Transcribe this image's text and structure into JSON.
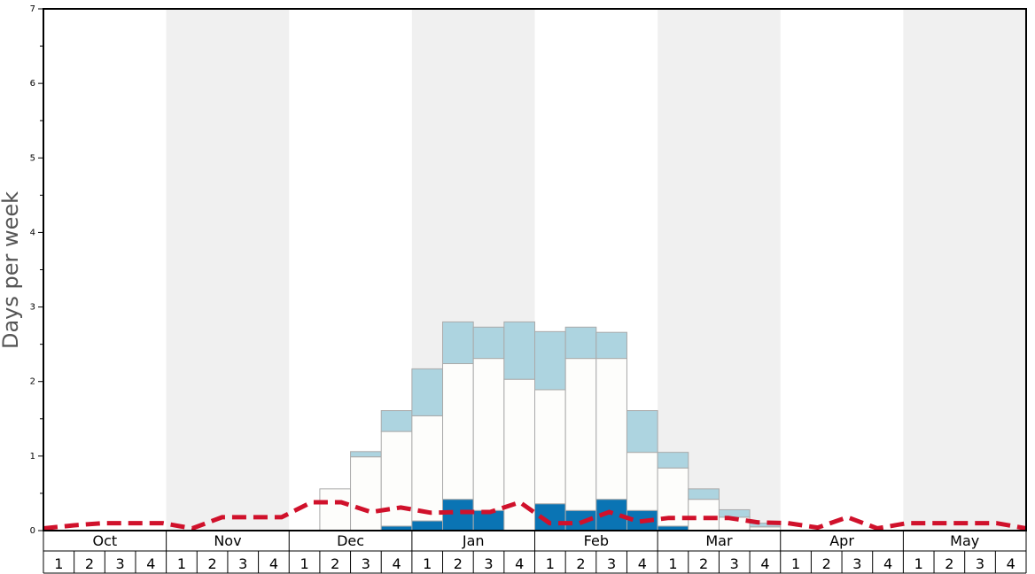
{
  "chart_data": {
    "type": "bar",
    "ylabel": "Days per week",
    "ylim": [
      0,
      7
    ],
    "yticks": [
      0,
      1,
      2,
      3,
      4,
      5,
      6,
      7
    ],
    "months": [
      "Oct",
      "Nov",
      "Dec",
      "Jan",
      "Feb",
      "Mar",
      "Apr",
      "May"
    ],
    "weeks": [
      "1",
      "2",
      "3",
      "4"
    ],
    "alternating_month_shading": true,
    "colors": {
      "white_segment": "#fdfdfb",
      "light_blue_segment": "#add4e0",
      "dark_blue_segment": "#0a74b4",
      "dashed_line": "#d0112b",
      "shade": "#f0f0f0",
      "bar_border": "#aaaaaa"
    },
    "series": [
      {
        "values": [
          0,
          0,
          0,
          0,
          0,
          0,
          0,
          0,
          0,
          0,
          0,
          0.06,
          0.13,
          0.42,
          0.27,
          0,
          0.36,
          0.27,
          0.42,
          0.27,
          0.06,
          0,
          0,
          0,
          0,
          0,
          0,
          0,
          0,
          0,
          0,
          0
        ]
      },
      {
        "values": [
          0,
          0,
          0,
          0,
          0,
          0,
          0,
          0,
          0,
          0.56,
          0.99,
          1.27,
          1.41,
          1.82,
          2.04,
          2.03,
          1.53,
          2.04,
          1.89,
          0.78,
          0.78,
          0.42,
          0.18,
          0.05,
          0,
          0,
          0,
          0,
          0,
          0,
          0,
          0
        ]
      },
      {
        "values": [
          0,
          0,
          0,
          0,
          0,
          0,
          0,
          0,
          0,
          0,
          0.07,
          0.28,
          0.63,
          0.56,
          0.42,
          0.77,
          0.78,
          0.42,
          0.35,
          0.56,
          0.21,
          0.14,
          0.1,
          0.05,
          0,
          0,
          0,
          0,
          0,
          0,
          0,
          0
        ]
      },
      {
        "values": [
          0.03,
          0.07,
          0.1,
          0.1,
          0.1,
          0.03,
          0.18,
          0.18,
          0.18,
          0.38,
          0.38,
          0.25,
          0.31,
          0.24,
          0.25,
          0.25,
          0.38,
          0.1,
          0.1,
          0.25,
          0.12,
          0.17,
          0.17,
          0.17,
          0.11,
          0.1,
          0.04,
          0.18,
          0.03,
          0.1,
          0.1,
          0.1,
          0.1,
          0.03
        ]
      }
    ]
  }
}
